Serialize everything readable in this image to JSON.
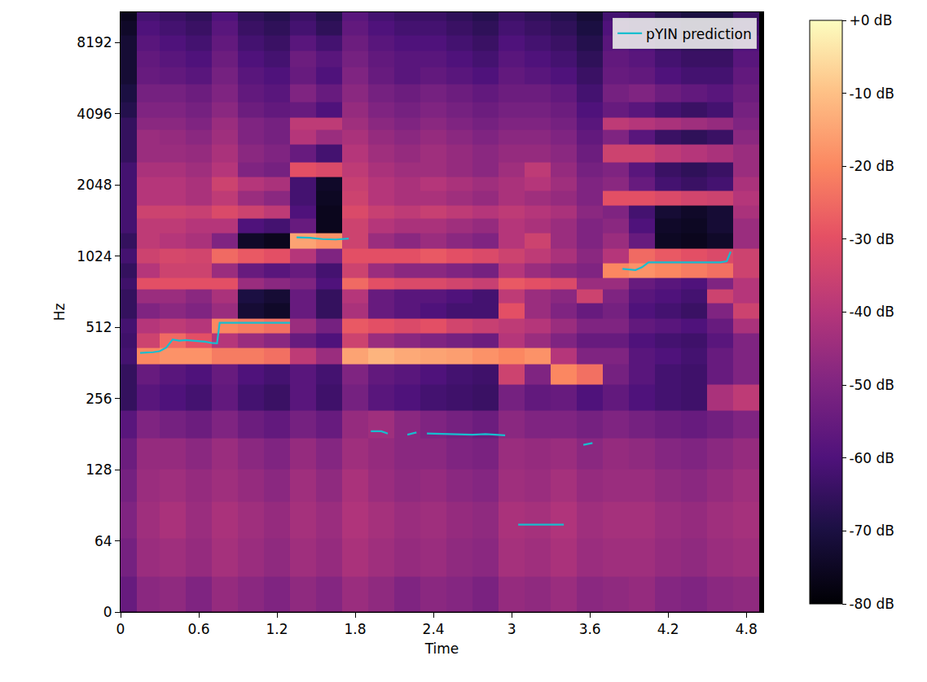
{
  "chart_data": {
    "type": "heatmap",
    "x_label": "Time",
    "y_label": "Hz",
    "xlim": [
      0,
      4.93
    ],
    "xticks": [
      0,
      0.6,
      1.2,
      1.8,
      2.4,
      3,
      3.6,
      4.2,
      4.8
    ],
    "ylim": [
      0,
      11025
    ],
    "yticks": [
      0,
      64,
      128,
      256,
      512,
      1024,
      2048,
      4096,
      8192
    ],
    "log": "y",
    "legend": "upper right",
    "cells": {
      "x": [
        0.05,
        0.2,
        0.4,
        0.6,
        0.8,
        1.0,
        1.2,
        1.4,
        1.6,
        1.8,
        2.0,
        2.2,
        2.4,
        2.6,
        2.8,
        3.0,
        3.2,
        3.4,
        3.6,
        3.8,
        4.0,
        4.2,
        4.4,
        4.6,
        4.8
      ],
      "y": [
        16,
        48,
        80,
        110,
        150,
        200,
        260,
        330,
        390,
        450,
        520,
        600,
        700,
        780,
        880,
        1040,
        1170,
        1400,
        1560,
        1800,
        2080,
        2340,
        2800,
        3300,
        3700,
        4200,
        5000,
        6000,
        7000,
        8200,
        9500,
        10800
      ],
      "z": [
        [
          -55,
          -48,
          -47,
          -50,
          -46,
          -48,
          -50,
          -47,
          -49,
          -45,
          -47,
          -50,
          -48,
          -49,
          -51,
          -46,
          -47,
          -45,
          -48,
          -47,
          -46,
          -49,
          -50,
          -48,
          -47
        ],
        [
          -52,
          -45,
          -44,
          -46,
          -43,
          -45,
          -47,
          -44,
          -46,
          -42,
          -44,
          -46,
          -45,
          -47,
          -48,
          -43,
          -44,
          -42,
          -45,
          -44,
          -44,
          -46,
          -47,
          -45,
          -44
        ],
        [
          -50,
          -44,
          -42,
          -45,
          -42,
          -44,
          -46,
          -43,
          -45,
          -41,
          -43,
          -45,
          -44,
          -46,
          -47,
          -42,
          -43,
          -41,
          -44,
          -43,
          -43,
          -45,
          -46,
          -44,
          -43
        ],
        [
          -52,
          -45,
          -44,
          -46,
          -44,
          -46,
          -48,
          -44,
          -47,
          -42,
          -45,
          -47,
          -46,
          -48,
          -49,
          -44,
          -45,
          -43,
          -46,
          -45,
          -45,
          -47,
          -48,
          -46,
          -44
        ],
        [
          -54,
          -46,
          -46,
          -48,
          -45,
          -48,
          -50,
          -46,
          -49,
          -44,
          -46,
          -48,
          -48,
          -50,
          -51,
          -45,
          -46,
          -45,
          -48,
          -46,
          -47,
          -49,
          -50,
          -48,
          -46
        ],
        [
          -58,
          -50,
          -52,
          -54,
          -50,
          -54,
          -56,
          -52,
          -55,
          -46,
          -44,
          -48,
          -50,
          -52,
          -54,
          -48,
          -50,
          -50,
          -52,
          -50,
          -52,
          -54,
          -55,
          -53,
          -50
        ],
        [
          -65,
          -58,
          -60,
          -62,
          -56,
          -62,
          -64,
          -58,
          -63,
          -52,
          -58,
          -60,
          -62,
          -63,
          -64,
          -52,
          -56,
          -55,
          -60,
          -56,
          -60,
          -62,
          -63,
          -42,
          -38
        ],
        [
          -65,
          -55,
          -58,
          -60,
          -55,
          -60,
          -62,
          -58,
          -62,
          -50,
          -56,
          -58,
          -60,
          -62,
          -63,
          -35,
          -50,
          -20,
          -24,
          -52,
          -58,
          -62,
          -63,
          -55,
          -50
        ],
        [
          -62,
          -20,
          -18,
          -18,
          -22,
          -22,
          -24,
          -38,
          -45,
          -15,
          -12,
          -14,
          -15,
          -16,
          -18,
          -20,
          -18,
          -40,
          -50,
          -50,
          -58,
          -60,
          -62,
          -55,
          -50
        ],
        [
          -63,
          -35,
          -25,
          -30,
          -40,
          -45,
          -48,
          -55,
          -60,
          -35,
          -45,
          -48,
          -50,
          -52,
          -54,
          -40,
          -45,
          -50,
          -55,
          -55,
          -60,
          -62,
          -63,
          -58,
          -50
        ],
        [
          -62,
          -40,
          -38,
          -40,
          -20,
          -22,
          -24,
          -45,
          -52,
          -28,
          -30,
          -32,
          -30,
          -34,
          -36,
          -38,
          -40,
          -45,
          -50,
          -50,
          -56,
          -58,
          -60,
          -55,
          -42
        ],
        [
          -65,
          -50,
          -48,
          -50,
          -45,
          -72,
          -74,
          -55,
          -65,
          -42,
          -55,
          -58,
          -60,
          -62,
          -62,
          -30,
          -45,
          -50,
          -55,
          -52,
          -60,
          -62,
          -64,
          -50,
          -35
        ],
        [
          -65,
          -45,
          -45,
          -48,
          -42,
          -70,
          -72,
          -55,
          -65,
          -40,
          -55,
          -58,
          -58,
          -60,
          -62,
          -38,
          -45,
          -48,
          -35,
          -50,
          -58,
          -60,
          -62,
          -35,
          -40
        ],
        [
          -63,
          -30,
          -30,
          -30,
          -30,
          -45,
          -48,
          -50,
          -60,
          -25,
          -30,
          -32,
          -32,
          -34,
          -36,
          -28,
          -30,
          -32,
          -45,
          -45,
          -55,
          -58,
          -60,
          -50,
          -40
        ],
        [
          -65,
          -40,
          -35,
          -35,
          -45,
          -55,
          -58,
          -55,
          -62,
          -35,
          -45,
          -48,
          -48,
          -50,
          -52,
          -40,
          -45,
          -48,
          -50,
          -20,
          -18,
          -20,
          -22,
          -24,
          -35
        ],
        [
          -62,
          -35,
          -33,
          -34,
          -25,
          -28,
          -30,
          -40,
          -50,
          -30,
          -30,
          -30,
          -28,
          -30,
          -32,
          -35,
          -38,
          -42,
          -48,
          -40,
          -25,
          -28,
          -30,
          -32,
          -35
        ],
        [
          -65,
          -38,
          -40,
          -42,
          -50,
          -74,
          -76,
          -15,
          -18,
          -35,
          -45,
          -48,
          -45,
          -48,
          -50,
          -40,
          -35,
          -45,
          -50,
          -45,
          -55,
          -75,
          -76,
          -74,
          -45
        ],
        [
          -62,
          -38,
          -38,
          -40,
          -40,
          -60,
          -62,
          -55,
          -76,
          -35,
          -40,
          -42,
          -42,
          -44,
          -46,
          -40,
          -42,
          -45,
          -50,
          -48,
          -60,
          -74,
          -75,
          -72,
          -45
        ],
        [
          -62,
          -35,
          -35,
          -36,
          -32,
          -35,
          -38,
          -60,
          -76,
          -32,
          -36,
          -38,
          -36,
          -38,
          -40,
          -38,
          -40,
          -42,
          -48,
          -50,
          -62,
          -72,
          -74,
          -72,
          -42
        ],
        [
          -62,
          -40,
          -40,
          -42,
          -38,
          -45,
          -48,
          -62,
          -75,
          -35,
          -40,
          -42,
          -42,
          -44,
          -46,
          -42,
          -44,
          -46,
          -50,
          -30,
          -30,
          -32,
          -34,
          -35,
          -40
        ],
        [
          -62,
          -40,
          -40,
          -42,
          -35,
          -40,
          -42,
          -62,
          -74,
          -36,
          -40,
          -42,
          -40,
          -42,
          -44,
          -42,
          -40,
          -44,
          -50,
          -48,
          -55,
          -62,
          -64,
          -62,
          -42
        ],
        [
          -62,
          -42,
          -42,
          -44,
          -40,
          -50,
          -52,
          -30,
          -32,
          -38,
          -42,
          -44,
          -44,
          -46,
          -48,
          -44,
          -38,
          -46,
          -52,
          -50,
          -58,
          -64,
          -66,
          -64,
          -45
        ],
        [
          -65,
          -45,
          -45,
          -46,
          -42,
          -48,
          -50,
          -55,
          -62,
          -40,
          -44,
          -46,
          -44,
          -46,
          -48,
          -46,
          -46,
          -48,
          -54,
          -35,
          -35,
          -38,
          -40,
          -42,
          -45
        ],
        [
          -65,
          -45,
          -46,
          -48,
          -44,
          -50,
          -52,
          -40,
          -45,
          -42,
          -46,
          -48,
          -46,
          -48,
          -50,
          -48,
          -48,
          -50,
          -56,
          -50,
          -58,
          -64,
          -66,
          -64,
          -48
        ],
        [
          -65,
          -48,
          -48,
          -50,
          -45,
          -50,
          -52,
          -38,
          -38,
          -44,
          -48,
          -50,
          -48,
          -50,
          -52,
          -50,
          -50,
          -52,
          -58,
          -38,
          -40,
          -42,
          -44,
          -46,
          -50
        ],
        [
          -68,
          -50,
          -50,
          -52,
          -48,
          -54,
          -56,
          -55,
          -60,
          -46,
          -50,
          -52,
          -50,
          -52,
          -54,
          -52,
          -52,
          -54,
          -60,
          -55,
          -58,
          -62,
          -64,
          -62,
          -52
        ],
        [
          -70,
          -52,
          -52,
          -54,
          -50,
          -56,
          -58,
          -50,
          -55,
          -48,
          -52,
          -54,
          -52,
          -54,
          -56,
          -54,
          -54,
          -56,
          -62,
          -52,
          -50,
          -54,
          -56,
          -58,
          -54
        ],
        [
          -72,
          -55,
          -56,
          -58,
          -52,
          -58,
          -60,
          -55,
          -60,
          -50,
          -55,
          -58,
          -56,
          -58,
          -60,
          -56,
          -58,
          -60,
          -64,
          -55,
          -56,
          -60,
          -62,
          -62,
          -56
        ],
        [
          -72,
          -56,
          -58,
          -60,
          -54,
          -60,
          -62,
          -54,
          -58,
          -52,
          -56,
          -58,
          -58,
          -60,
          -62,
          -58,
          -60,
          -62,
          -66,
          -56,
          -58,
          -62,
          -64,
          -64,
          -58
        ],
        [
          -72,
          -58,
          -60,
          -62,
          -56,
          -62,
          -64,
          -58,
          -62,
          -54,
          -58,
          -60,
          -60,
          -62,
          -64,
          -60,
          -62,
          -64,
          -68,
          -58,
          -60,
          -64,
          -66,
          -66,
          -60
        ],
        [
          -74,
          -60,
          -62,
          -64,
          -58,
          -64,
          -66,
          -62,
          -66,
          -56,
          -60,
          -62,
          -62,
          -64,
          -66,
          -62,
          -64,
          -66,
          -70,
          -60,
          -62,
          -66,
          -68,
          -68,
          -62
        ],
        [
          -76,
          -62,
          -64,
          -66,
          -60,
          -66,
          -68,
          -64,
          -68,
          -58,
          -62,
          -64,
          -64,
          -66,
          -68,
          -64,
          -66,
          -68,
          -72,
          -62,
          -64,
          -68,
          -70,
          -70,
          -64
        ]
      ]
    },
    "colorbar": {
      "range": [
        -80,
        0
      ],
      "ticks": [
        {
          "value": 0,
          "label": "+0 dB"
        },
        {
          "value": -10,
          "label": "-10 dB"
        },
        {
          "value": -20,
          "label": "-20 dB"
        },
        {
          "value": -30,
          "label": "-30 dB"
        },
        {
          "value": -40,
          "label": "-40 dB"
        },
        {
          "value": -50,
          "label": "-50 dB"
        },
        {
          "value": -60,
          "label": "-60 dB"
        },
        {
          "value": -70,
          "label": "-70 dB"
        },
        {
          "value": -80,
          "label": "-80 dB"
        }
      ]
    },
    "series": [
      {
        "name": "pYIN prediction",
        "type": "line",
        "color": "#17becf",
        "x": [
          0.15,
          0.2,
          0.25,
          0.3,
          0.35,
          0.4,
          0.45,
          0.5,
          0.55,
          0.6,
          0.65,
          0.7,
          0.74,
          0.76,
          0.8,
          0.9,
          1.0,
          1.1,
          1.2,
          1.3,
          1.32,
          1.35,
          1.45,
          1.55,
          1.65,
          1.75,
          1.8,
          1.92,
          2.0,
          2.05,
          2.1,
          2.2,
          2.27,
          2.3,
          2.35,
          2.5,
          2.6,
          2.7,
          2.8,
          2.95,
          3.0,
          3.05,
          3.2,
          3.4,
          3.45,
          3.55,
          3.62,
          3.65,
          3.85,
          3.95,
          4.0,
          4.05,
          4.2,
          4.4,
          4.6,
          4.65,
          4.68
        ],
        "values": [
          399,
          400,
          402,
          406,
          420,
          455,
          450,
          452,
          450,
          447,
          445,
          440,
          438,
          535,
          535,
          535,
          535,
          535,
          535,
          535,
          null,
          1230,
          1225,
          1210,
          1205,
          1215,
          null,
          186,
          186,
          182,
          null,
          180,
          184,
          null,
          182,
          181,
          181,
          180,
          181,
          179,
          null,
          75,
          75,
          75,
          null,
          163,
          166,
          null,
          905,
          895,
          920,
          965,
          965,
          965,
          965,
          975,
          1070
        ]
      }
    ]
  }
}
